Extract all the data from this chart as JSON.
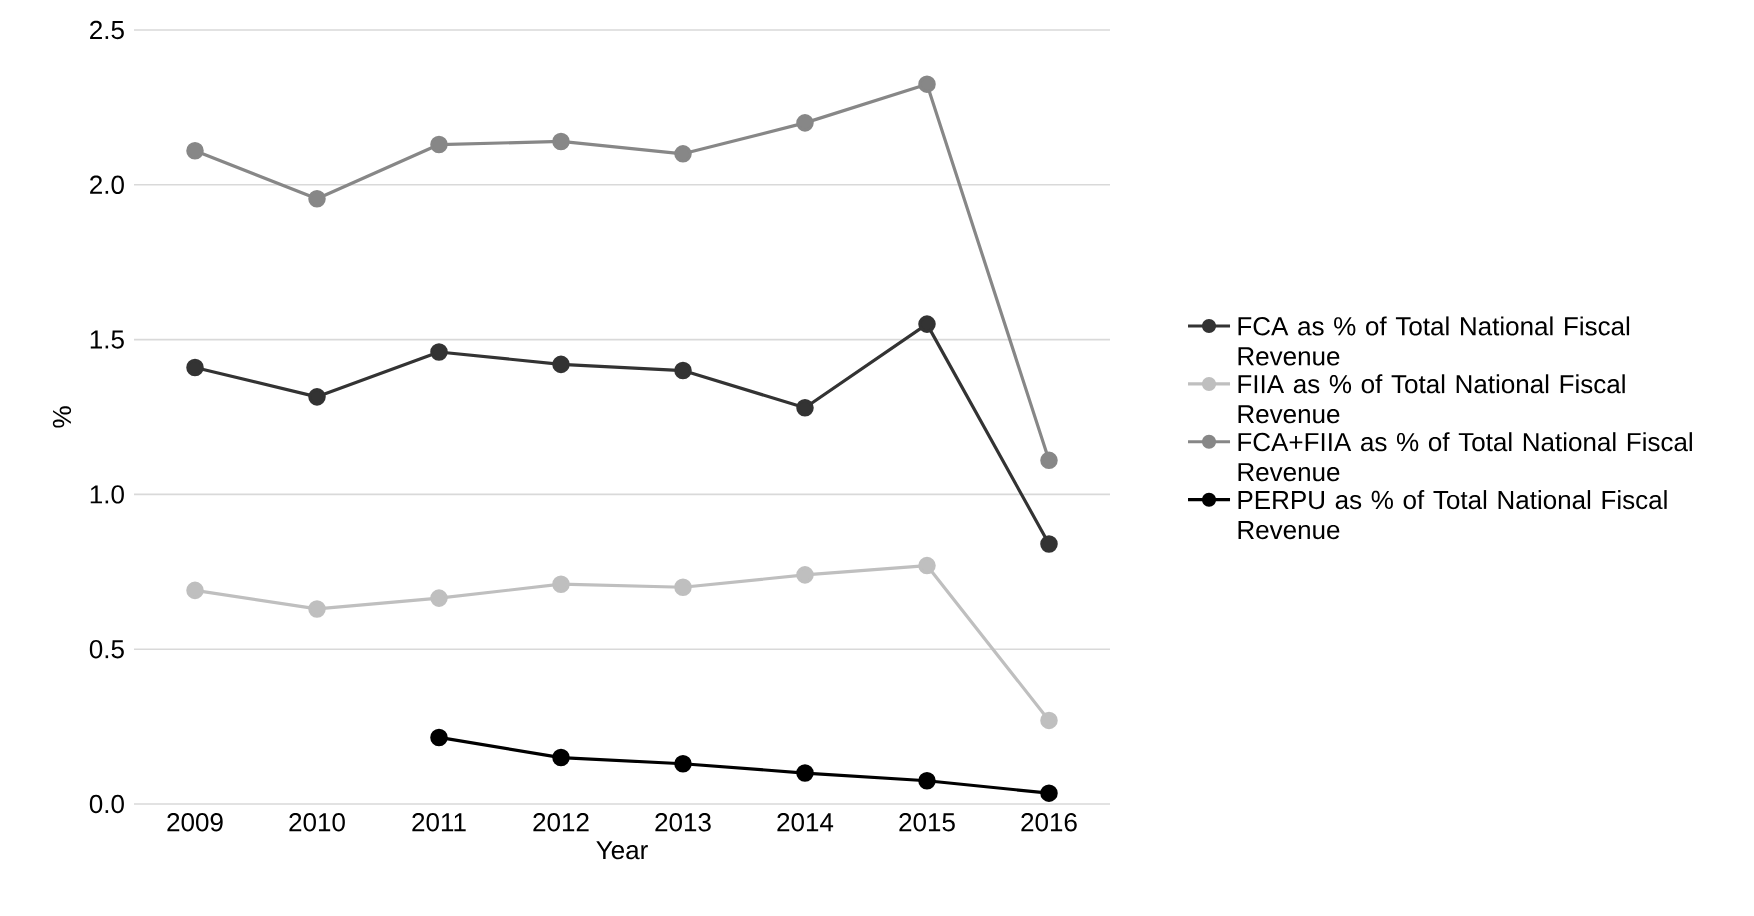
{
  "chart_data": {
    "type": "line",
    "xlabel": "Year",
    "ylabel": "%",
    "categories": [
      "2009",
      "2010",
      "2011",
      "2012",
      "2013",
      "2014",
      "2015",
      "2016"
    ],
    "series": [
      {
        "name": "FCA as % of Total National Fiscal Revenue",
        "color": "#333333",
        "values": [
          1.41,
          1.315,
          1.46,
          1.42,
          1.4,
          1.28,
          1.55,
          0.84
        ]
      },
      {
        "name": "FIIA as % of Total National Fiscal Revenue",
        "color": "#bfbfbf",
        "values": [
          0.69,
          0.63,
          0.665,
          0.71,
          0.7,
          0.74,
          0.77,
          0.27
        ]
      },
      {
        "name": "FCA+FIIA as % of Total National Fiscal Revenue",
        "color": "#878787",
        "values": [
          2.11,
          1.955,
          2.13,
          2.14,
          2.1,
          2.2,
          2.325,
          1.11
        ]
      },
      {
        "name": "PERPU as % of Total National Fiscal Revenue",
        "color": "#000000",
        "values": [
          null,
          null,
          0.215,
          0.15,
          0.13,
          0.1,
          0.075,
          0.035
        ]
      }
    ],
    "ylim": [
      0,
      2.5
    ],
    "yticks": [
      {
        "value": 0,
        "label": "0.0"
      },
      {
        "value": 0.5,
        "label": "0.5"
      },
      {
        "value": 1,
        "label": "1.0"
      },
      {
        "value": 1.5,
        "label": "1.5"
      },
      {
        "value": 2,
        "label": "2.0"
      },
      {
        "value": 2.5,
        "label": "2.5"
      }
    ],
    "grid": "y",
    "legend": "right",
    "marker": "circle",
    "line_style": "solid"
  }
}
